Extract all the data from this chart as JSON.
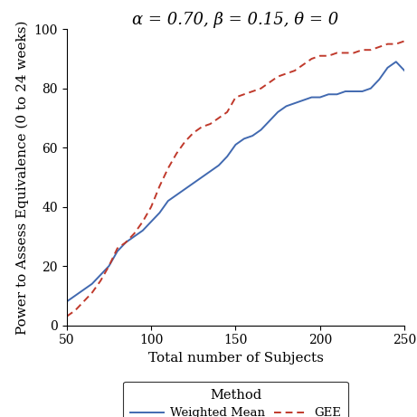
{
  "title": "α = 0.70, β = 0.15, θ = 0",
  "xlabel": "Total number of Subjects",
  "ylabel": "Power to Assess Equivalence (0 to 24 weeks)",
  "xlim": [
    50,
    250
  ],
  "ylim": [
    0,
    100
  ],
  "xticks": [
    50,
    100,
    150,
    200,
    250
  ],
  "yticks": [
    0,
    20,
    40,
    60,
    80,
    100
  ],
  "weighted_mean_x": [
    50,
    55,
    60,
    65,
    70,
    75,
    80,
    85,
    90,
    95,
    100,
    105,
    110,
    115,
    120,
    125,
    130,
    135,
    140,
    145,
    150,
    155,
    160,
    165,
    170,
    175,
    180,
    185,
    190,
    195,
    200,
    205,
    210,
    215,
    220,
    225,
    230,
    235,
    240,
    245,
    250
  ],
  "weighted_mean_y": [
    8,
    10,
    12,
    14,
    17,
    20,
    25,
    28,
    30,
    32,
    35,
    38,
    42,
    44,
    46,
    48,
    50,
    52,
    54,
    57,
    61,
    63,
    64,
    66,
    69,
    72,
    74,
    75,
    76,
    77,
    77,
    78,
    78,
    79,
    79,
    79,
    80,
    83,
    87,
    89,
    86
  ],
  "gee_x": [
    50,
    55,
    60,
    65,
    70,
    75,
    80,
    85,
    90,
    95,
    100,
    105,
    110,
    115,
    120,
    125,
    130,
    135,
    140,
    145,
    150,
    155,
    160,
    165,
    170,
    175,
    180,
    185,
    190,
    195,
    200,
    205,
    210,
    215,
    220,
    225,
    230,
    235,
    240,
    245,
    250
  ],
  "gee_y": [
    3,
    5,
    8,
    11,
    15,
    20,
    26,
    28,
    31,
    35,
    40,
    47,
    53,
    58,
    62,
    65,
    67,
    68,
    70,
    72,
    77,
    78,
    79,
    80,
    82,
    84,
    85,
    86,
    88,
    90,
    91,
    91,
    92,
    92,
    92,
    93,
    93,
    94,
    95,
    95,
    96
  ],
  "wm_color": "#4169b0",
  "gee_color": "#c0392b",
  "legend_title": "Method",
  "bg_color": "#ffffff",
  "title_fontsize": 13,
  "axis_label_fontsize": 11,
  "tick_fontsize": 10
}
